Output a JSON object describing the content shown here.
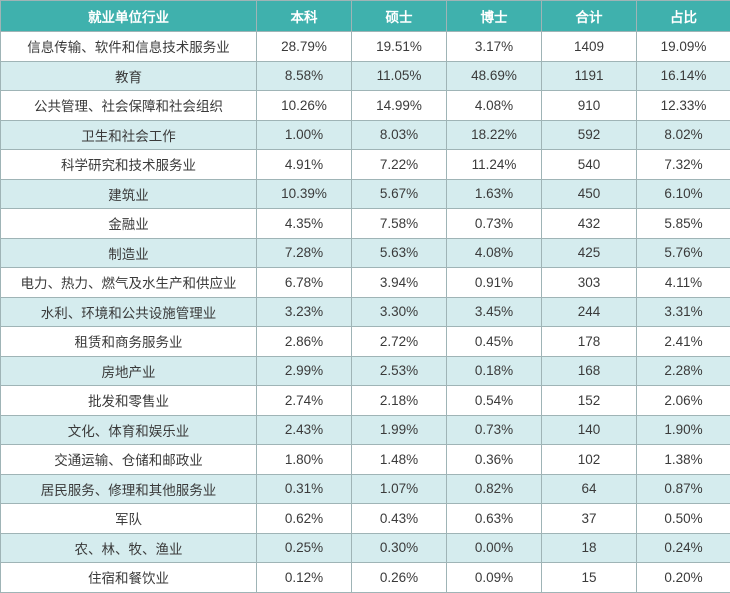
{
  "table": {
    "headers": [
      "就业单位行业",
      "本科",
      "硕士",
      "博士",
      "合计",
      "占比"
    ],
    "rows": [
      [
        "信息传输、软件和信息技术服务业",
        "28.79%",
        "19.51%",
        "3.17%",
        "1409",
        "19.09%"
      ],
      [
        "教育",
        "8.58%",
        "11.05%",
        "48.69%",
        "1191",
        "16.14%"
      ],
      [
        "公共管理、社会保障和社会组织",
        "10.26%",
        "14.99%",
        "4.08%",
        "910",
        "12.33%"
      ],
      [
        "卫生和社会工作",
        "1.00%",
        "8.03%",
        "18.22%",
        "592",
        "8.02%"
      ],
      [
        "科学研究和技术服务业",
        "4.91%",
        "7.22%",
        "11.24%",
        "540",
        "7.32%"
      ],
      [
        "建筑业",
        "10.39%",
        "5.67%",
        "1.63%",
        "450",
        "6.10%"
      ],
      [
        "金融业",
        "4.35%",
        "7.58%",
        "0.73%",
        "432",
        "5.85%"
      ],
      [
        "制造业",
        "7.28%",
        "5.63%",
        "4.08%",
        "425",
        "5.76%"
      ],
      [
        "电力、热力、燃气及水生产和供应业",
        "6.78%",
        "3.94%",
        "0.91%",
        "303",
        "4.11%"
      ],
      [
        "水利、环境和公共设施管理业",
        "3.23%",
        "3.30%",
        "3.45%",
        "244",
        "3.31%"
      ],
      [
        "租赁和商务服务业",
        "2.86%",
        "2.72%",
        "0.45%",
        "178",
        "2.41%"
      ],
      [
        "房地产业",
        "2.99%",
        "2.53%",
        "0.18%",
        "168",
        "2.28%"
      ],
      [
        "批发和零售业",
        "2.74%",
        "2.18%",
        "0.54%",
        "152",
        "2.06%"
      ],
      [
        "文化、体育和娱乐业",
        "2.43%",
        "1.99%",
        "0.73%",
        "140",
        "1.90%"
      ],
      [
        "交通运输、仓储和邮政业",
        "1.80%",
        "1.48%",
        "0.36%",
        "102",
        "1.38%"
      ],
      [
        "居民服务、修理和其他服务业",
        "0.31%",
        "1.07%",
        "0.82%",
        "64",
        "0.87%"
      ],
      [
        "军队",
        "0.62%",
        "0.43%",
        "0.63%",
        "37",
        "0.50%"
      ],
      [
        "农、林、牧、渔业",
        "0.25%",
        "0.30%",
        "0.00%",
        "18",
        "0.24%"
      ],
      [
        "住宿和餐饮业",
        "0.12%",
        "0.26%",
        "0.09%",
        "15",
        "0.20%"
      ]
    ]
  },
  "colors": {
    "header_bg": "#3fb1ad",
    "stripe_bg": "#d5ecee",
    "border": "#9fb4b6"
  }
}
